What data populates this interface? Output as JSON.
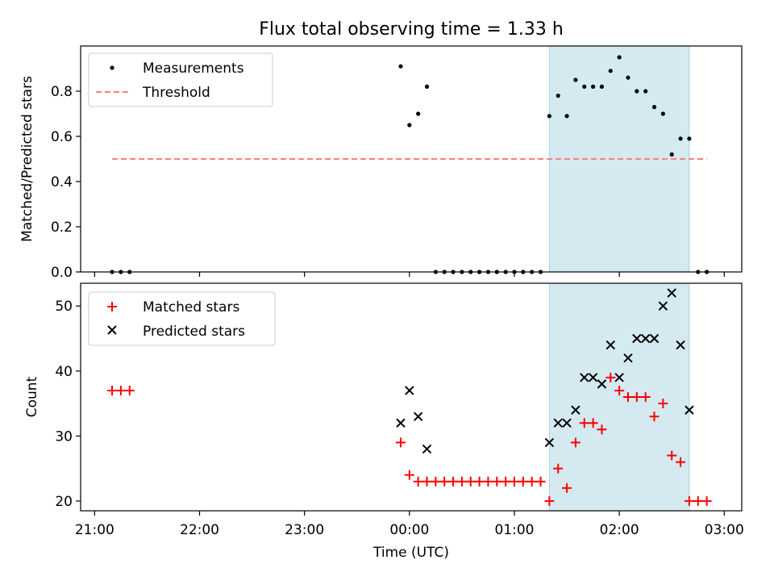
{
  "chart_data": [
    {
      "type": "scatter",
      "title": "Flux total observing time = 1.33 h",
      "xlabel": "",
      "ylabel": "Matched/Predicted stars",
      "xlim": [
        "20:52",
        "03:10"
      ],
      "ylim": [
        0,
        1.0
      ],
      "yticks": [
        0.0,
        0.2,
        0.4,
        0.6,
        0.8
      ],
      "ytick_labels": [
        "0.0",
        "0.2",
        "0.4",
        "0.6",
        "0.8"
      ],
      "legend_position": "top-left",
      "shaded_region": {
        "x0": "01:20",
        "x1": "02:40",
        "color": "#d4eaf0"
      },
      "series": [
        {
          "name": "Measurements",
          "marker": "dot",
          "color": "#000000",
          "x": [
            "21:10",
            "21:15",
            "21:20",
            "23:55",
            "00:00",
            "00:05",
            "00:10",
            "00:15",
            "00:20",
            "00:25",
            "00:30",
            "00:35",
            "00:40",
            "00:45",
            "00:50",
            "00:55",
            "01:00",
            "01:05",
            "01:10",
            "01:15",
            "01:20",
            "01:25",
            "01:30",
            "01:35",
            "01:40",
            "01:45",
            "01:50",
            "01:55",
            "02:00",
            "02:05",
            "02:10",
            "02:15",
            "02:20",
            "02:25",
            "02:30",
            "02:35",
            "02:40",
            "02:45",
            "02:50"
          ],
          "y": [
            0,
            0,
            0,
            0.91,
            0.65,
            0.7,
            0.82,
            0,
            0,
            0,
            0,
            0,
            0,
            0,
            0,
            0,
            0,
            0,
            0,
            0,
            0.69,
            0.78,
            0.69,
            0.85,
            0.82,
            0.82,
            0.82,
            0.89,
            0.95,
            0.86,
            0.8,
            0.8,
            0.73,
            0.7,
            0.52,
            0.59,
            0.59,
            0,
            0
          ]
        },
        {
          "name": "Threshold",
          "style": "dashed",
          "color": "#ff8080",
          "x": [
            "21:10",
            "02:50"
          ],
          "y": [
            0.5,
            0.5
          ]
        }
      ]
    },
    {
      "type": "scatter",
      "title": "",
      "xlabel": "Time (UTC)",
      "ylabel": "Count",
      "xlim": [
        "20:52",
        "03:10"
      ],
      "ylim": [
        18.5,
        53.5
      ],
      "yticks": [
        20,
        30,
        40,
        50
      ],
      "ytick_labels": [
        "20",
        "30",
        "40",
        "50"
      ],
      "xticks": [
        "21:00",
        "22:00",
        "23:00",
        "00:00",
        "01:00",
        "02:00",
        "03:00"
      ],
      "xtick_labels": [
        "21:00",
        "22:00",
        "23:00",
        "00:00",
        "01:00",
        "02:00",
        "03:00"
      ],
      "legend_position": "top-left",
      "shaded_region": {
        "x0": "01:20",
        "x1": "02:40",
        "color": "#d4eaf0"
      },
      "series": [
        {
          "name": "Matched stars",
          "marker": "plus",
          "color": "#ff0000",
          "x": [
            "21:10",
            "21:15",
            "21:20",
            "23:55",
            "00:00",
            "00:05",
            "00:10",
            "00:15",
            "00:20",
            "00:25",
            "00:30",
            "00:35",
            "00:40",
            "00:45",
            "00:50",
            "00:55",
            "01:00",
            "01:05",
            "01:10",
            "01:15",
            "01:20",
            "01:25",
            "01:30",
            "01:35",
            "01:40",
            "01:45",
            "01:50",
            "01:55",
            "02:00",
            "02:05",
            "02:10",
            "02:15",
            "02:20",
            "02:25",
            "02:30",
            "02:35",
            "02:40",
            "02:45",
            "02:50"
          ],
          "y": [
            37,
            37,
            37,
            29,
            24,
            23,
            23,
            23,
            23,
            23,
            23,
            23,
            23,
            23,
            23,
            23,
            23,
            23,
            23,
            23,
            20,
            25,
            22,
            29,
            32,
            32,
            31,
            39,
            37,
            36,
            36,
            36,
            33,
            35,
            27,
            26,
            20,
            20,
            20
          ]
        },
        {
          "name": "Predicted stars",
          "marker": "x",
          "color": "#000000",
          "x": [
            "23:55",
            "00:00",
            "00:05",
            "00:10",
            "01:20",
            "01:25",
            "01:30",
            "01:35",
            "01:40",
            "01:45",
            "01:50",
            "01:55",
            "02:00",
            "02:05",
            "02:10",
            "02:15",
            "02:20",
            "02:25",
            "02:30",
            "02:35",
            "02:40"
          ],
          "y": [
            32,
            37,
            33,
            28,
            29,
            32,
            32,
            34,
            39,
            39,
            38,
            44,
            39,
            42,
            45,
            45,
            45,
            50,
            52,
            44,
            34
          ]
        }
      ]
    }
  ]
}
